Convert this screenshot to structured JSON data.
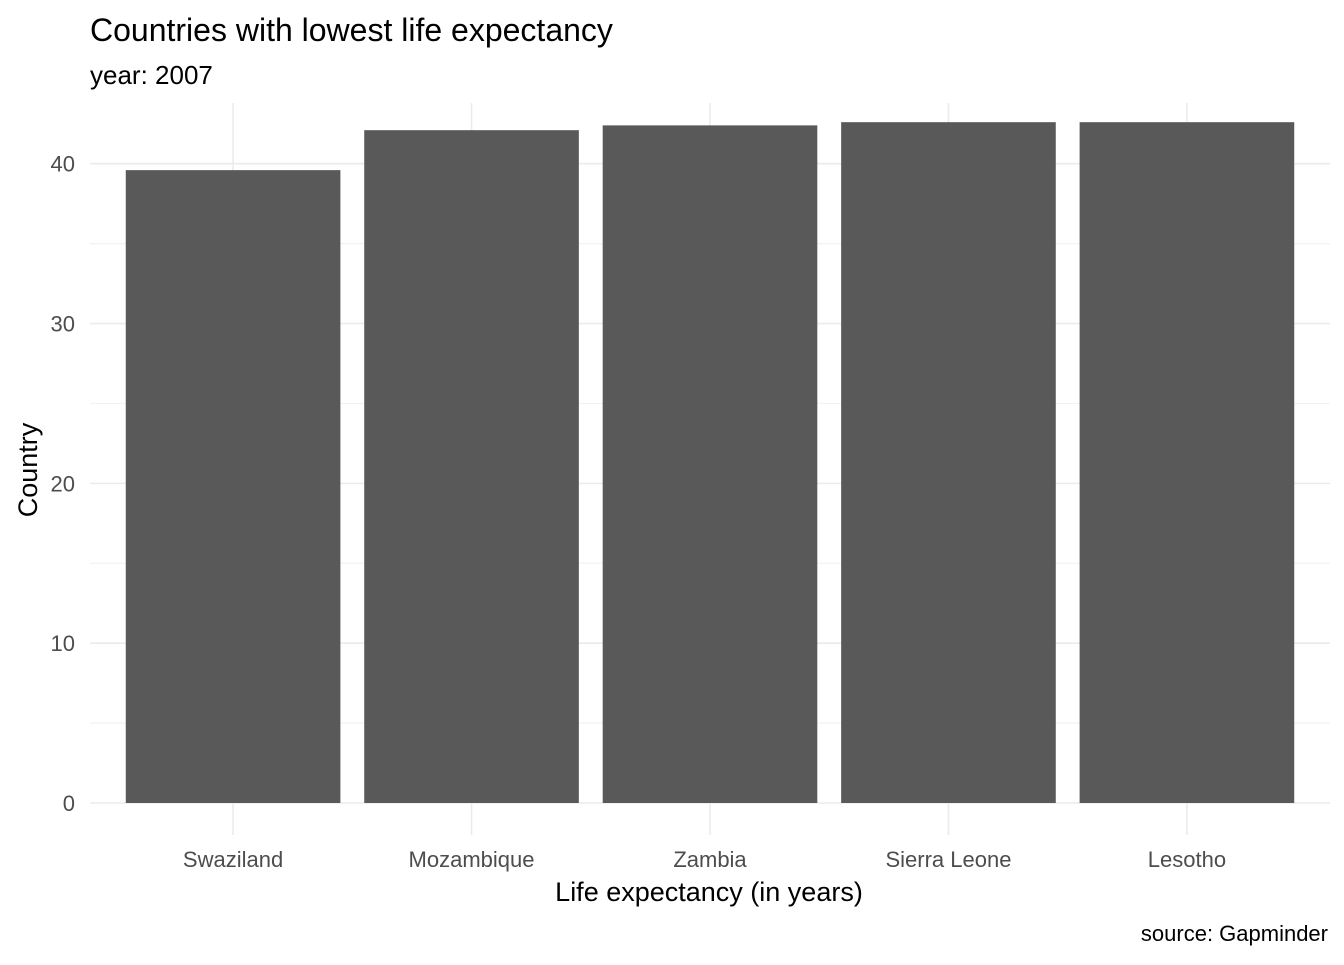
{
  "chart_data": {
    "type": "bar",
    "title": "Countries with lowest life expectancy",
    "subtitle": "year: 2007",
    "xlabel": "Life expectancy (in years)",
    "ylabel": "Country",
    "caption": "source: Gapminder",
    "categories": [
      "Swaziland",
      "Mozambique",
      "Zambia",
      "Sierra Leone",
      "Lesotho"
    ],
    "values": [
      39.6,
      42.1,
      42.4,
      42.6,
      42.6
    ],
    "ylim": [
      0,
      43.8
    ],
    "yticks": [
      0,
      10,
      20,
      30,
      40
    ],
    "grid": true,
    "colors": {
      "bar": "#595959",
      "grid_major": "#ebebeb",
      "grid_minor": "#f2f2f2",
      "tick_text": "#4d4d4d"
    }
  }
}
